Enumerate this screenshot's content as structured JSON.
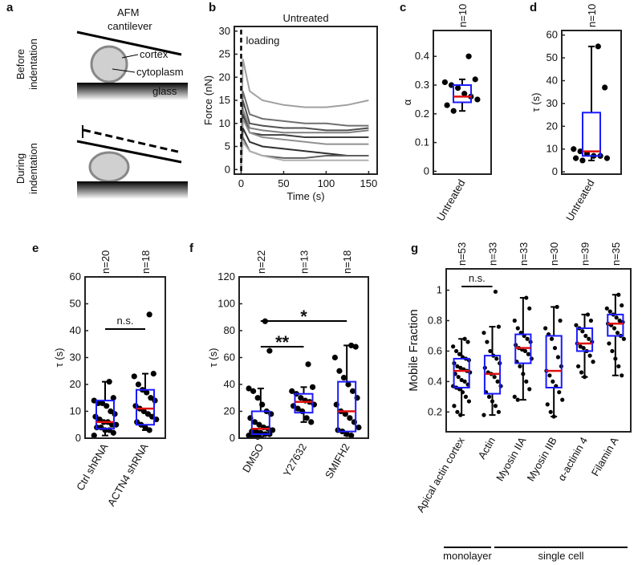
{
  "diagram": {
    "panel_label": "a",
    "cantilever_label": [
      "AFM",
      "cantilever"
    ],
    "cortex_label": "cortex",
    "cytoplasm_label": "cytoplasm",
    "glass_label": "glass",
    "before_label": [
      "Before",
      "indentation"
    ],
    "during_label": [
      "During",
      "indentation"
    ]
  },
  "chart_data": [
    {
      "type": "line",
      "panel_label": "b",
      "title": "Untreated",
      "xlabel": "Time (s)",
      "ylabel": "Force (nN)",
      "annotation": "loading",
      "x": [
        0,
        2,
        10,
        25,
        50,
        75,
        100,
        125,
        150
      ],
      "xlim": [
        -8,
        160
      ],
      "xticks": [
        0,
        50,
        100,
        150
      ],
      "ylim": [
        -1,
        31
      ],
      "yticks": [
        0,
        5,
        10,
        15,
        20,
        25,
        30
      ],
      "series": [
        {
          "color": "#a0a0a0",
          "values": [
            0,
            24,
            17,
            15,
            14,
            13.5,
            13.5,
            14,
            15
          ]
        },
        {
          "color": "#707070",
          "values": [
            0,
            17,
            12,
            11,
            10.5,
            10,
            10,
            9.5,
            9.5
          ]
        },
        {
          "color": "#505050",
          "values": [
            0,
            15,
            10,
            9.5,
            9,
            9,
            8.5,
            8.5,
            9
          ]
        },
        {
          "color": "#808080",
          "values": [
            0,
            13,
            9,
            8.5,
            8,
            8,
            8,
            8,
            8.5
          ]
        },
        {
          "color": "#404040",
          "values": [
            0,
            12,
            8,
            7.5,
            7.5,
            7,
            7,
            7,
            7
          ]
        },
        {
          "color": "#909090",
          "values": [
            0,
            11,
            8,
            7,
            6.5,
            6,
            5.5,
            5.5,
            5.5
          ]
        },
        {
          "color": "#303030",
          "values": [
            0,
            9,
            6,
            5,
            4.5,
            4,
            3.5,
            3,
            3
          ]
        },
        {
          "color": "#606060",
          "values": [
            0,
            7,
            4,
            3,
            2.5,
            2.5,
            3,
            3,
            3
          ]
        },
        {
          "color": "#b0b0b0",
          "values": [
            0,
            6,
            4,
            3,
            2,
            2,
            2,
            2,
            2
          ]
        }
      ]
    },
    {
      "type": "box",
      "panel_label": "c",
      "ylabel": "α",
      "categories": [
        "Untreated"
      ],
      "n_labels": [
        "n=10"
      ],
      "ylim": [
        -0.01,
        0.49
      ],
      "yticks": [
        0,
        0.1,
        0.2,
        0.3,
        0.4
      ],
      "q1": [
        0.24
      ],
      "median": [
        0.26
      ],
      "q3": [
        0.3
      ],
      "whisker_low": [
        0.21
      ],
      "whisker_high": [
        0.32
      ],
      "points": [
        [
          0.4,
          0.32,
          0.31,
          0.3,
          0.29,
          0.27,
          0.26,
          0.25,
          0.23,
          0.21
        ]
      ]
    },
    {
      "type": "box",
      "panel_label": "d",
      "ylabel": "τ (s)",
      "categories": [
        "Untreated"
      ],
      "n_labels": [
        "n=10"
      ],
      "ylim": [
        -1,
        62
      ],
      "yticks": [
        0,
        10,
        20,
        30,
        40,
        50,
        60
      ],
      "q1": [
        7
      ],
      "median": [
        9
      ],
      "q3": [
        26
      ],
      "whisker_low": [
        5
      ],
      "whisker_high": [
        55
      ],
      "points": [
        [
          55,
          37,
          10,
          9,
          8,
          7,
          7,
          6,
          6,
          5
        ]
      ]
    },
    {
      "type": "box",
      "panel_label": "e",
      "ylabel": "τ (s)",
      "categories": [
        "Ctrl shRNA",
        "ACTN4 shRNA"
      ],
      "n_labels": [
        "n=20",
        "n=18"
      ],
      "annotations": [
        "n.s."
      ],
      "ylim": [
        0,
        60
      ],
      "yticks": [
        0,
        10,
        20,
        30,
        40,
        50,
        60
      ],
      "q1": [
        3.5,
        5
      ],
      "median": [
        6,
        11
      ],
      "q3": [
        14,
        18
      ],
      "whisker_low": [
        1,
        3
      ],
      "whisker_high": [
        21,
        24
      ],
      "points": [
        [
          21,
          15,
          14,
          13,
          13,
          12,
          10,
          9,
          8,
          7,
          6,
          6,
          5,
          5,
          4,
          4,
          3,
          3,
          2,
          1
        ],
        [
          46,
          24,
          23,
          20,
          18,
          17,
          15,
          14,
          12,
          11,
          10,
          9,
          8,
          7,
          6,
          5,
          4,
          3
        ]
      ]
    },
    {
      "type": "box",
      "panel_label": "f",
      "ylabel": "τ (s)",
      "categories": [
        "DMSO",
        "Y27632",
        "SMIFH2"
      ],
      "n_labels": [
        "n=22",
        "n=13",
        "n=18"
      ],
      "annotations": [
        "**",
        "*"
      ],
      "ylim": [
        0,
        120
      ],
      "yticks": [
        0,
        20,
        40,
        60,
        80,
        100,
        120
      ],
      "q1": [
        3,
        19,
        5
      ],
      "median": [
        7,
        27,
        20
      ],
      "q3": [
        20,
        33,
        42
      ],
      "whisker_low": [
        1,
        12,
        2
      ],
      "whisker_high": [
        37,
        38,
        69
      ],
      "points": [
        [
          87,
          65,
          37,
          35,
          30,
          25,
          20,
          18,
          15,
          12,
          10,
          8,
          7,
          6,
          5,
          5,
          4,
          3,
          3,
          2,
          2,
          1
        ],
        [
          55,
          38,
          35,
          33,
          30,
          28,
          27,
          25,
          24,
          22,
          20,
          15,
          12
        ],
        [
          69,
          68,
          60,
          50,
          45,
          40,
          35,
          30,
          25,
          20,
          18,
          15,
          12,
          8,
          6,
          5,
          3,
          2
        ]
      ]
    },
    {
      "type": "box",
      "panel_label": "g",
      "ylabel": "Mobile Fraction",
      "categories": [
        "Apical actin cortex",
        "Actin",
        "Myosin IIA",
        "Myosin IIB",
        "α-actinin 4",
        "Filamin A"
      ],
      "n_labels": [
        "n=53",
        "n=33",
        "n=33",
        "n=30",
        "n=39",
        "n=35"
      ],
      "annotations": [
        "n.s."
      ],
      "groups": [
        "monolayer",
        "single cell"
      ],
      "ylim": [
        0.07,
        1.14
      ],
      "yticks": [
        0.2,
        0.4,
        0.6,
        0.8,
        1
      ],
      "q1": [
        0.36,
        0.32,
        0.52,
        0.36,
        0.6,
        0.7
      ],
      "median": [
        0.47,
        0.45,
        0.62,
        0.47,
        0.65,
        0.78
      ],
      "q3": [
        0.55,
        0.57,
        0.71,
        0.7,
        0.75,
        0.84
      ],
      "whisker_low": [
        0.18,
        0.18,
        0.28,
        0.17,
        0.43,
        0.44
      ],
      "whisker_high": [
        0.68,
        0.76,
        0.95,
        0.89,
        0.84,
        0.97
      ],
      "points": [
        [
          0.68,
          0.66,
          0.63,
          0.6,
          0.58,
          0.56,
          0.55,
          0.54,
          0.52,
          0.5,
          0.49,
          0.48,
          0.47,
          0.46,
          0.45,
          0.43,
          0.41,
          0.4,
          0.38,
          0.37,
          0.36,
          0.35,
          0.33,
          0.3,
          0.27,
          0.24,
          0.2,
          0.18
        ],
        [
          0.99,
          0.76,
          0.72,
          0.66,
          0.6,
          0.57,
          0.55,
          0.52,
          0.49,
          0.46,
          0.45,
          0.43,
          0.4,
          0.37,
          0.33,
          0.3,
          0.27,
          0.24,
          0.2,
          0.18
        ],
        [
          0.95,
          0.88,
          0.8,
          0.75,
          0.72,
          0.7,
          0.68,
          0.66,
          0.64,
          0.62,
          0.61,
          0.6,
          0.58,
          0.55,
          0.53,
          0.5,
          0.45,
          0.4,
          0.35,
          0.3,
          0.28
        ],
        [
          0.89,
          0.8,
          0.75,
          0.71,
          0.68,
          0.62,
          0.56,
          0.5,
          0.47,
          0.44,
          0.4,
          0.37,
          0.33,
          0.28,
          0.25,
          0.2,
          0.17
        ],
        [
          0.84,
          0.8,
          0.77,
          0.75,
          0.73,
          0.7,
          0.68,
          0.66,
          0.65,
          0.63,
          0.62,
          0.6,
          0.57,
          0.53,
          0.5,
          0.46,
          0.43
        ],
        [
          0.97,
          0.9,
          0.88,
          0.86,
          0.84,
          0.82,
          0.8,
          0.79,
          0.78,
          0.77,
          0.75,
          0.72,
          0.7,
          0.68,
          0.65,
          0.6,
          0.55,
          0.5,
          0.44
        ]
      ]
    }
  ]
}
